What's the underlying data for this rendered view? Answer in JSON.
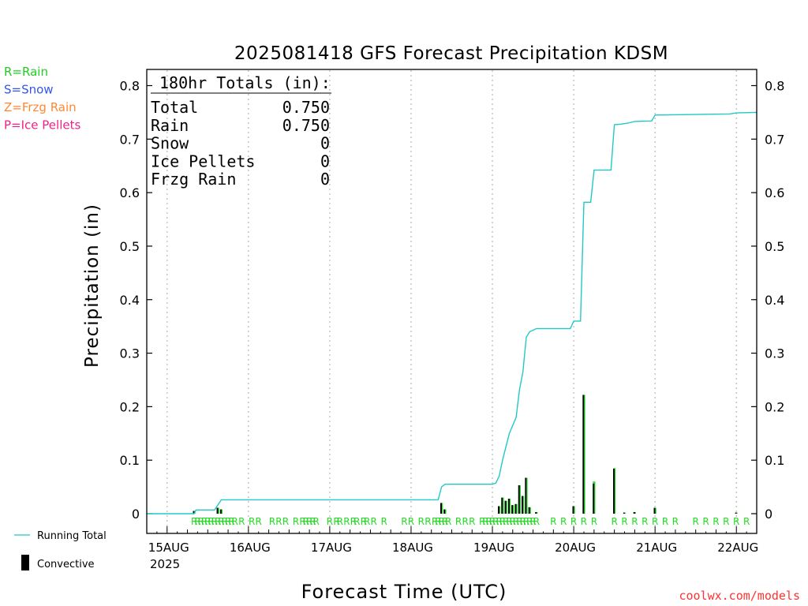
{
  "title": "2025081418 GFS Forecast Precipitation KDSM",
  "credit": "coolwx.com/models",
  "legend_types": [
    {
      "label": "R=Rain",
      "color": "#22cc22"
    },
    {
      "label": "S=Snow",
      "color": "#3355ee"
    },
    {
      "label": "Z=Frzg Rain",
      "color": "#ff8833"
    },
    {
      "label": "P=Ice Pellets",
      "color": "#ee2288"
    }
  ],
  "legend_series": {
    "running_total": "Running Total",
    "convective": "Convective"
  },
  "totals": {
    "header": "180hr Totals (in):",
    "rows": [
      {
        "label": "Total",
        "value": "0.750"
      },
      {
        "label": "Rain",
        "value": "0.750"
      },
      {
        "label": "Snow",
        "value": "0"
      },
      {
        "label": "Ice Pellets",
        "value": "0"
      },
      {
        "label": "Frzg Rain",
        "value": "0"
      }
    ]
  },
  "chart_data": {
    "type": "bar",
    "title": "2025081418 GFS Forecast Precipitation KDSM",
    "xlabel": "Forecast Time (UTC)",
    "ylabel": "Precipitation (in)",
    "ylim": [
      0,
      0.8
    ],
    "yticks": [
      "0",
      "0.1",
      "0.2",
      "0.3",
      "0.4",
      "0.5",
      "0.6",
      "0.7",
      "0.8"
    ],
    "xlim_forecast_hours": [
      0,
      180
    ],
    "date_ticks": [
      {
        "hour": 6,
        "label": "15AUG"
      },
      {
        "hour": 30,
        "label": "16AUG"
      },
      {
        "hour": 54,
        "label": "17AUG"
      },
      {
        "hour": 78,
        "label": "18AUG"
      },
      {
        "hour": 102,
        "label": "19AUG"
      },
      {
        "hour": 126,
        "label": "20AUG"
      },
      {
        "hour": 150,
        "label": "21AUG"
      },
      {
        "hour": 174,
        "label": "22AUG"
      }
    ],
    "year_label": "2025",
    "grid": "vertical dotted at 00Z",
    "colors": {
      "total_line": "#22c8c8",
      "rain_bar": "#22dd22",
      "convective_bar": "#000000",
      "type_letter": "#22dd22"
    },
    "period_precip": [
      {
        "hour": 14,
        "total": 0.005,
        "convective": 0.005
      },
      {
        "hour": 21,
        "total": 0.011,
        "convective": 0.011
      },
      {
        "hour": 22,
        "total": 0.008,
        "convective": 0.008
      },
      {
        "hour": 87,
        "total": 0.02,
        "convective": 0.02
      },
      {
        "hour": 88,
        "total": 0.008,
        "convective": 0.008
      },
      {
        "hour": 104,
        "total": 0.014,
        "convective": 0.014
      },
      {
        "hour": 105,
        "total": 0.03,
        "convective": 0.03
      },
      {
        "hour": 106,
        "total": 0.024,
        "convective": 0.024
      },
      {
        "hour": 107,
        "total": 0.028,
        "convective": 0.028
      },
      {
        "hour": 108,
        "total": 0.016,
        "convective": 0.016
      },
      {
        "hour": 109,
        "total": 0.018,
        "convective": 0.018
      },
      {
        "hour": 110,
        "total": 0.053,
        "convective": 0.053
      },
      {
        "hour": 111,
        "total": 0.033,
        "convective": 0.033
      },
      {
        "hour": 112,
        "total": 0.067,
        "convective": 0.067
      },
      {
        "hour": 113,
        "total": 0.012,
        "convective": 0.012
      },
      {
        "hour": 115,
        "total": 0.003,
        "convective": 0.003
      },
      {
        "hour": 126,
        "total": 0.014,
        "convective": 0.014
      },
      {
        "hour": 129,
        "total": 0.222,
        "convective": 0.222
      },
      {
        "hour": 132,
        "total": 0.06,
        "convective": 0.056
      },
      {
        "hour": 138,
        "total": 0.085,
        "convective": 0.084
      },
      {
        "hour": 141,
        "total": 0.002,
        "convective": 0.002
      },
      {
        "hour": 144,
        "total": 0.003,
        "convective": 0.003
      },
      {
        "hour": 150,
        "total": 0.011,
        "convective": 0.011
      },
      {
        "hour": 174,
        "total": 0.002,
        "convective": 0.002
      }
    ],
    "running_total": [
      {
        "hour": 0,
        "value": 0
      },
      {
        "hour": 14,
        "value": 0
      },
      {
        "hour": 14.5,
        "value": 0.007
      },
      {
        "hour": 20,
        "value": 0.007
      },
      {
        "hour": 22,
        "value": 0.026
      },
      {
        "hour": 86,
        "value": 0.026
      },
      {
        "hour": 87,
        "value": 0.05
      },
      {
        "hour": 88,
        "value": 0.055
      },
      {
        "hour": 102,
        "value": 0.055
      },
      {
        "hour": 103,
        "value": 0.057
      },
      {
        "hour": 104,
        "value": 0.07
      },
      {
        "hour": 105,
        "value": 0.1
      },
      {
        "hour": 106,
        "value": 0.125
      },
      {
        "hour": 107,
        "value": 0.15
      },
      {
        "hour": 108,
        "value": 0.165
      },
      {
        "hour": 109,
        "value": 0.18
      },
      {
        "hour": 110,
        "value": 0.232
      },
      {
        "hour": 111,
        "value": 0.265
      },
      {
        "hour": 112,
        "value": 0.33
      },
      {
        "hour": 113,
        "value": 0.34
      },
      {
        "hour": 114,
        "value": 0.343
      },
      {
        "hour": 115,
        "value": 0.346
      },
      {
        "hour": 125,
        "value": 0.346
      },
      {
        "hour": 126,
        "value": 0.36
      },
      {
        "hour": 128,
        "value": 0.36
      },
      {
        "hour": 129,
        "value": 0.582
      },
      {
        "hour": 131,
        "value": 0.582
      },
      {
        "hour": 132,
        "value": 0.642
      },
      {
        "hour": 137,
        "value": 0.642
      },
      {
        "hour": 138,
        "value": 0.727
      },
      {
        "hour": 140,
        "value": 0.728
      },
      {
        "hour": 142,
        "value": 0.73
      },
      {
        "hour": 144,
        "value": 0.733
      },
      {
        "hour": 149,
        "value": 0.734
      },
      {
        "hour": 150,
        "value": 0.745
      },
      {
        "hour": 172,
        "value": 0.747
      },
      {
        "hour": 174,
        "value": 0.749
      },
      {
        "hour": 180,
        "value": 0.75
      }
    ],
    "precip_type_marks": {
      "letter": "R",
      "hours": [
        14,
        15,
        16,
        17,
        18,
        19,
        20,
        21,
        22,
        23,
        24,
        25,
        26,
        28,
        31,
        33,
        37,
        39,
        41,
        44,
        46,
        47,
        48,
        49,
        50,
        54,
        56,
        57,
        59,
        61,
        62,
        64,
        65,
        67,
        70,
        76,
        78,
        81,
        83,
        85,
        86,
        87,
        88,
        89,
        92,
        94,
        96,
        99,
        100,
        101,
        102,
        103,
        104,
        105,
        106,
        107,
        108,
        109,
        110,
        111,
        112,
        113,
        114,
        115,
        120,
        123,
        126,
        129,
        132,
        138,
        141,
        144,
        147,
        150,
        153,
        156,
        162,
        165,
        168,
        171,
        174,
        177
      ]
    }
  }
}
